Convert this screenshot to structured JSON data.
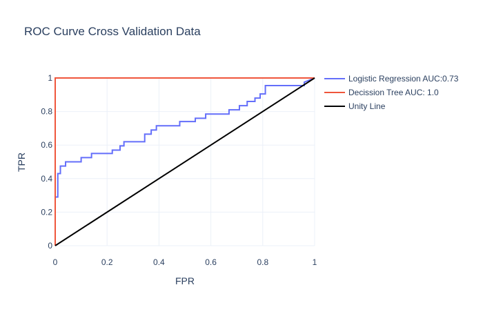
{
  "chart_data": {
    "type": "line",
    "title": "ROC Curve Cross Validation Data",
    "xlabel": "FPR",
    "ylabel": "TPR",
    "xlim": [
      0,
      1
    ],
    "ylim": [
      0,
      1
    ],
    "xticks": [
      0,
      0.2,
      0.4,
      0.6,
      0.8,
      1
    ],
    "xtick_labels": [
      "0",
      "0.2",
      "0.4",
      "0.6",
      "0.8",
      "1"
    ],
    "yticks": [
      0,
      0.2,
      0.4,
      0.6,
      0.8,
      1
    ],
    "ytick_labels": [
      "0",
      "0.2",
      "0.4",
      "0.6",
      "0.8",
      "1"
    ],
    "grid": true,
    "legend_position": "top-right outside plot",
    "series": [
      {
        "name": "Logistic Regression AUC:0.73",
        "color": "#636efa",
        "x": [
          0,
          0,
          0.01,
          0.01,
          0.02,
          0.02,
          0.04,
          0.04,
          0.1,
          0.1,
          0.14,
          0.14,
          0.22,
          0.22,
          0.25,
          0.25,
          0.265,
          0.265,
          0.345,
          0.345,
          0.37,
          0.37,
          0.39,
          0.39,
          0.48,
          0.48,
          0.54,
          0.54,
          0.58,
          0.58,
          0.67,
          0.67,
          0.71,
          0.71,
          0.74,
          0.74,
          0.77,
          0.77,
          0.79,
          0.79,
          0.81,
          0.81,
          0.96,
          0.96,
          1.0
        ],
        "y": [
          0,
          0.29,
          0.29,
          0.43,
          0.43,
          0.475,
          0.475,
          0.5,
          0.5,
          0.525,
          0.525,
          0.55,
          0.55,
          0.57,
          0.57,
          0.595,
          0.595,
          0.62,
          0.62,
          0.665,
          0.665,
          0.69,
          0.69,
          0.715,
          0.715,
          0.74,
          0.74,
          0.76,
          0.76,
          0.785,
          0.785,
          0.81,
          0.81,
          0.835,
          0.835,
          0.86,
          0.86,
          0.88,
          0.88,
          0.905,
          0.905,
          0.955,
          0.955,
          0.975,
          1.0
        ]
      },
      {
        "name": "Decission Tree AUC: 1.0",
        "color": "#ef553b",
        "x": [
          0,
          0,
          1
        ],
        "y": [
          0,
          1,
          1
        ]
      },
      {
        "name": "Unity Line",
        "color": "#000000",
        "x": [
          0,
          1
        ],
        "y": [
          0,
          1
        ]
      }
    ]
  }
}
